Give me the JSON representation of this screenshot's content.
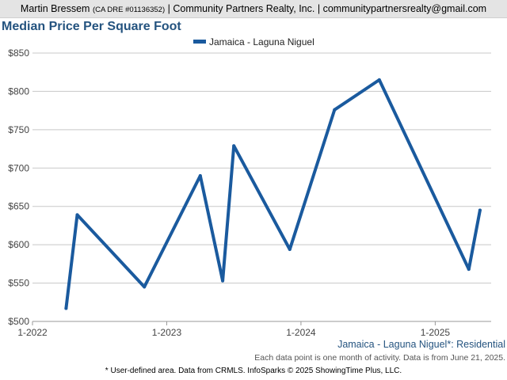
{
  "header": {
    "agent_name": "Martin Bressem",
    "license": "(CA DRE #01136352)",
    "separator": "|",
    "company": "Community Partners Realty, Inc.",
    "email": "communitypartnersrealty@gmail.com"
  },
  "footer": {
    "subtitle": "Jamaica - Laguna Niguel*: Residential",
    "data_note": "Each data point is one month of activity. Data is from June 21, 2025.",
    "source": "* User-defined area. Data from CRMLS. InfoSparks © 2025 ShowingTime Plus, LLC."
  },
  "colors": {
    "series": "#1a5a9e",
    "title": "#24537f",
    "grid": "#c8c8c8",
    "axis_text": "#444444"
  },
  "chart_data": {
    "type": "line",
    "title": "Median Price Per Square Foot",
    "legend_position": "top-center",
    "grid": true,
    "x_ticks": [
      "1-2022",
      "1-2023",
      "1-2024",
      "1-2025"
    ],
    "y_ticks": [
      "$500",
      "$550",
      "$600",
      "$650",
      "$700",
      "$750",
      "$800",
      "$850"
    ],
    "ylim": [
      500,
      850
    ],
    "xlim": [
      "2022-01",
      "2025-06"
    ],
    "series": [
      {
        "name": "Jamaica - Laguna Niguel",
        "points": [
          {
            "x": "2022-04",
            "y": 517
          },
          {
            "x": "2022-05",
            "y": 639
          },
          {
            "x": "2022-11",
            "y": 545
          },
          {
            "x": "2023-04",
            "y": 690
          },
          {
            "x": "2023-06",
            "y": 553
          },
          {
            "x": "2023-07",
            "y": 729
          },
          {
            "x": "2023-12",
            "y": 594
          },
          {
            "x": "2024-04",
            "y": 776
          },
          {
            "x": "2024-08",
            "y": 815
          },
          {
            "x": "2025-04",
            "y": 568
          },
          {
            "x": "2025-05",
            "y": 645
          }
        ]
      }
    ]
  }
}
